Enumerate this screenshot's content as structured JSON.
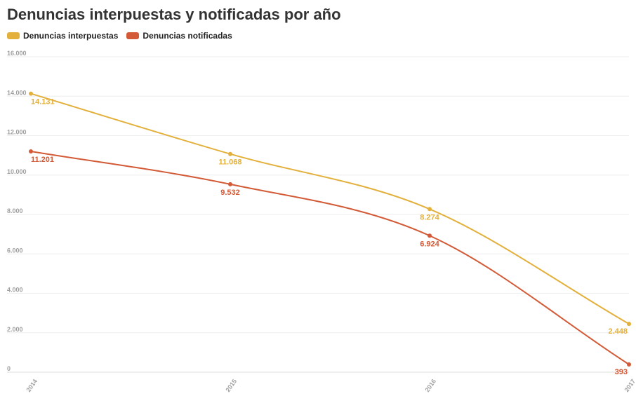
{
  "chart_data": {
    "type": "line",
    "title": "Denuncias interpuestas y notificadas por año",
    "xlabel": "",
    "ylabel": "",
    "categories": [
      "2014",
      "2015",
      "2016",
      "2017"
    ],
    "ylim": [
      0,
      16000
    ],
    "yticks": [
      0,
      2000,
      4000,
      6000,
      8000,
      10000,
      12000,
      14000,
      16000
    ],
    "ytick_labels": [
      "0",
      "2.000",
      "4.000",
      "6.000",
      "8.000",
      "10.000",
      "12.000",
      "14.000",
      "16.000"
    ],
    "grid": true,
    "legend_position": "top-left",
    "series": [
      {
        "name": "Denuncias interpuestas",
        "color": "#e3b03c",
        "values": [
          14131,
          11068,
          8274,
          2448
        ],
        "labels": [
          "14.131",
          "11.068",
          "8.274",
          "2.448"
        ]
      },
      {
        "name": "Denuncias notificadas",
        "color": "#d35a36",
        "values": [
          11201,
          9532,
          6924,
          393
        ],
        "labels": [
          "11.201",
          "9.532",
          "6.924",
          "393"
        ]
      }
    ]
  }
}
